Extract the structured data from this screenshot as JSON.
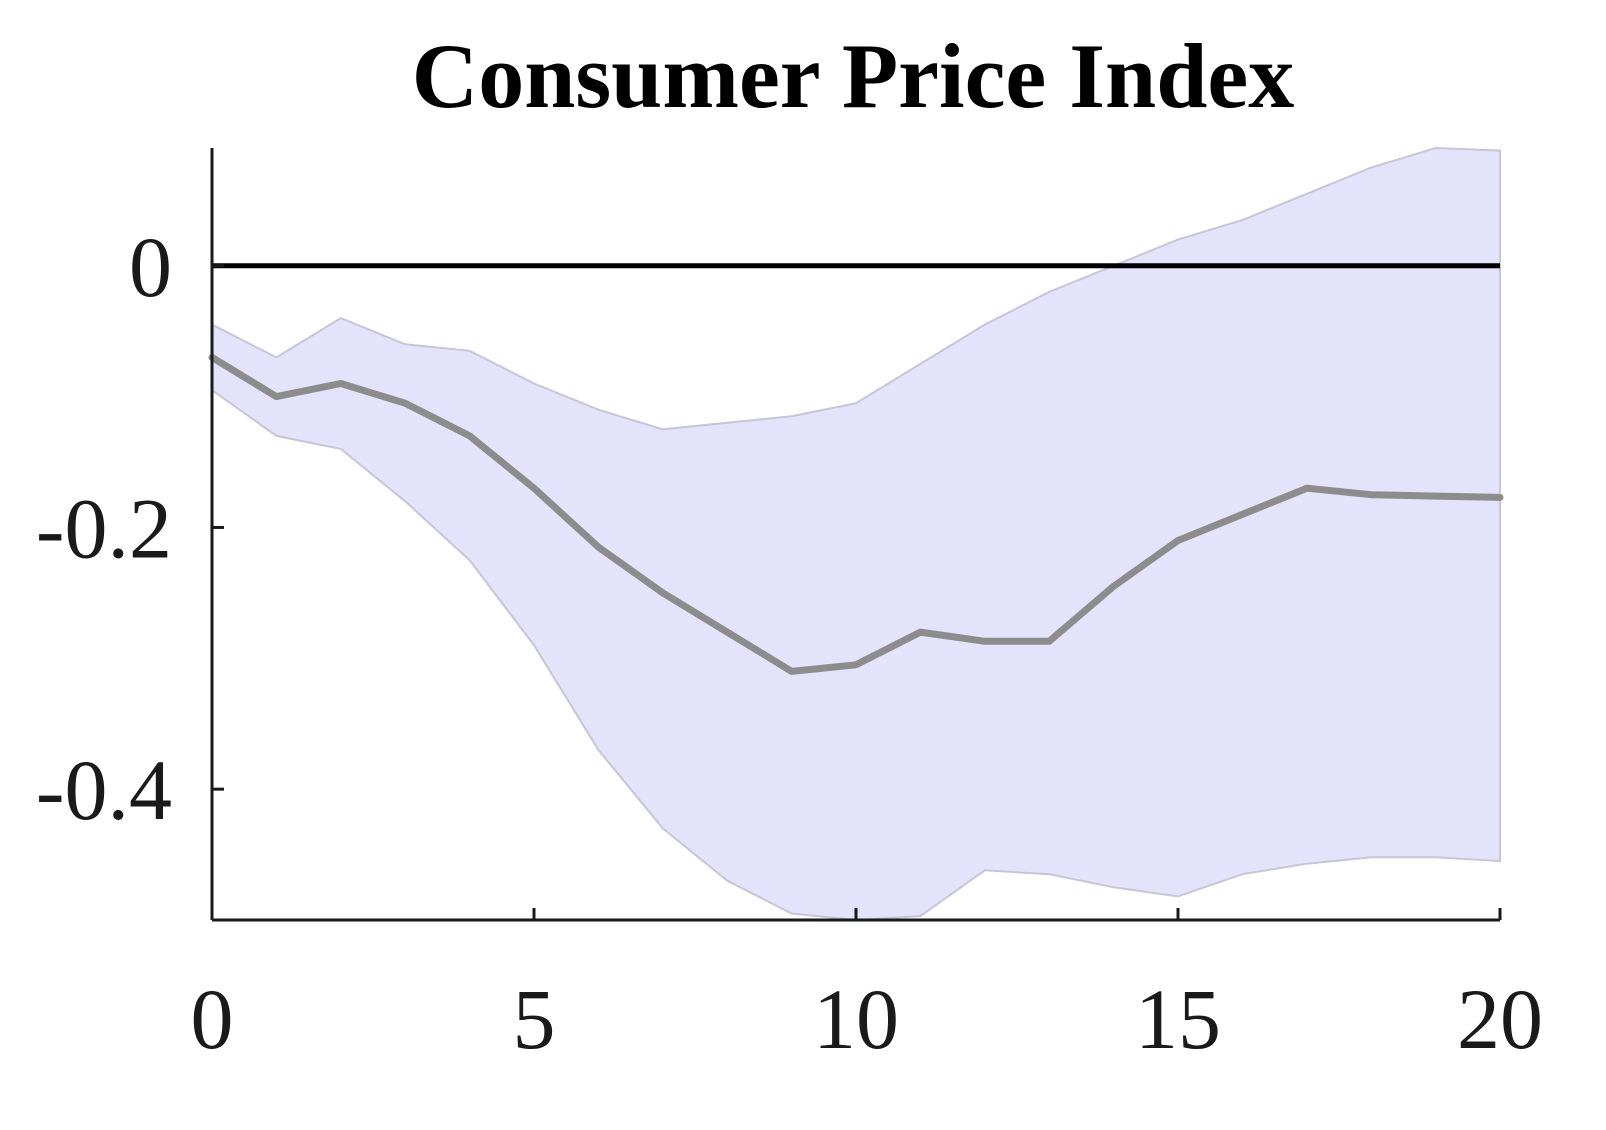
{
  "chart_data": {
    "type": "line",
    "title": "Consumer Price Index",
    "xlabel": "",
    "ylabel": "",
    "xlim": [
      0,
      20
    ],
    "ylim": [
      -0.5,
      0.09
    ],
    "x_ticks": [
      0,
      5,
      10,
      15,
      20
    ],
    "x_tick_labels": [
      "0",
      "5",
      "10",
      "15",
      "20"
    ],
    "y_ticks": [
      0,
      -0.2,
      -0.4
    ],
    "y_tick_labels": [
      "0",
      "-0.2",
      "-0.4"
    ],
    "grid": false,
    "legend": "none",
    "zero_line": 0,
    "series": [
      {
        "x": [
          0,
          1,
          2,
          3,
          4,
          5,
          6,
          7,
          8,
          9,
          10,
          11,
          12,
          13,
          14,
          15,
          16,
          17,
          18,
          19,
          20
        ],
        "y": [
          -0.07,
          -0.1,
          -0.09,
          -0.105,
          -0.13,
          -0.17,
          -0.215,
          -0.25,
          -0.28,
          -0.31,
          -0.305,
          -0.28,
          -0.287,
          -0.287,
          -0.245,
          -0.21,
          -0.19,
          -0.17,
          -0.175,
          -0.176,
          -0.177
        ],
        "color": "#8c8c8c"
      }
    ],
    "band": {
      "x": [
        0,
        1,
        2,
        3,
        4,
        5,
        6,
        7,
        8,
        9,
        10,
        11,
        12,
        13,
        14,
        15,
        16,
        17,
        18,
        19,
        20
      ],
      "lower": [
        -0.095,
        -0.13,
        -0.14,
        -0.18,
        -0.225,
        -0.29,
        -0.37,
        -0.43,
        -0.47,
        -0.495,
        -0.5,
        -0.497,
        -0.462,
        -0.465,
        -0.475,
        -0.482,
        -0.465,
        -0.457,
        -0.452,
        -0.452,
        -0.455
      ],
      "upper": [
        -0.045,
        -0.07,
        -0.04,
        -0.06,
        -0.065,
        -0.09,
        -0.11,
        -0.125,
        -0.12,
        -0.115,
        -0.105,
        -0.075,
        -0.045,
        -0.02,
        0.0,
        0.02,
        0.035,
        0.055,
        0.075,
        0.09,
        0.088
      ],
      "color": "#e3e3fb",
      "edge_color": "#c6c6d6"
    },
    "colors": {
      "axis": "#1a1a1a",
      "zero_line": "#000000"
    }
  }
}
